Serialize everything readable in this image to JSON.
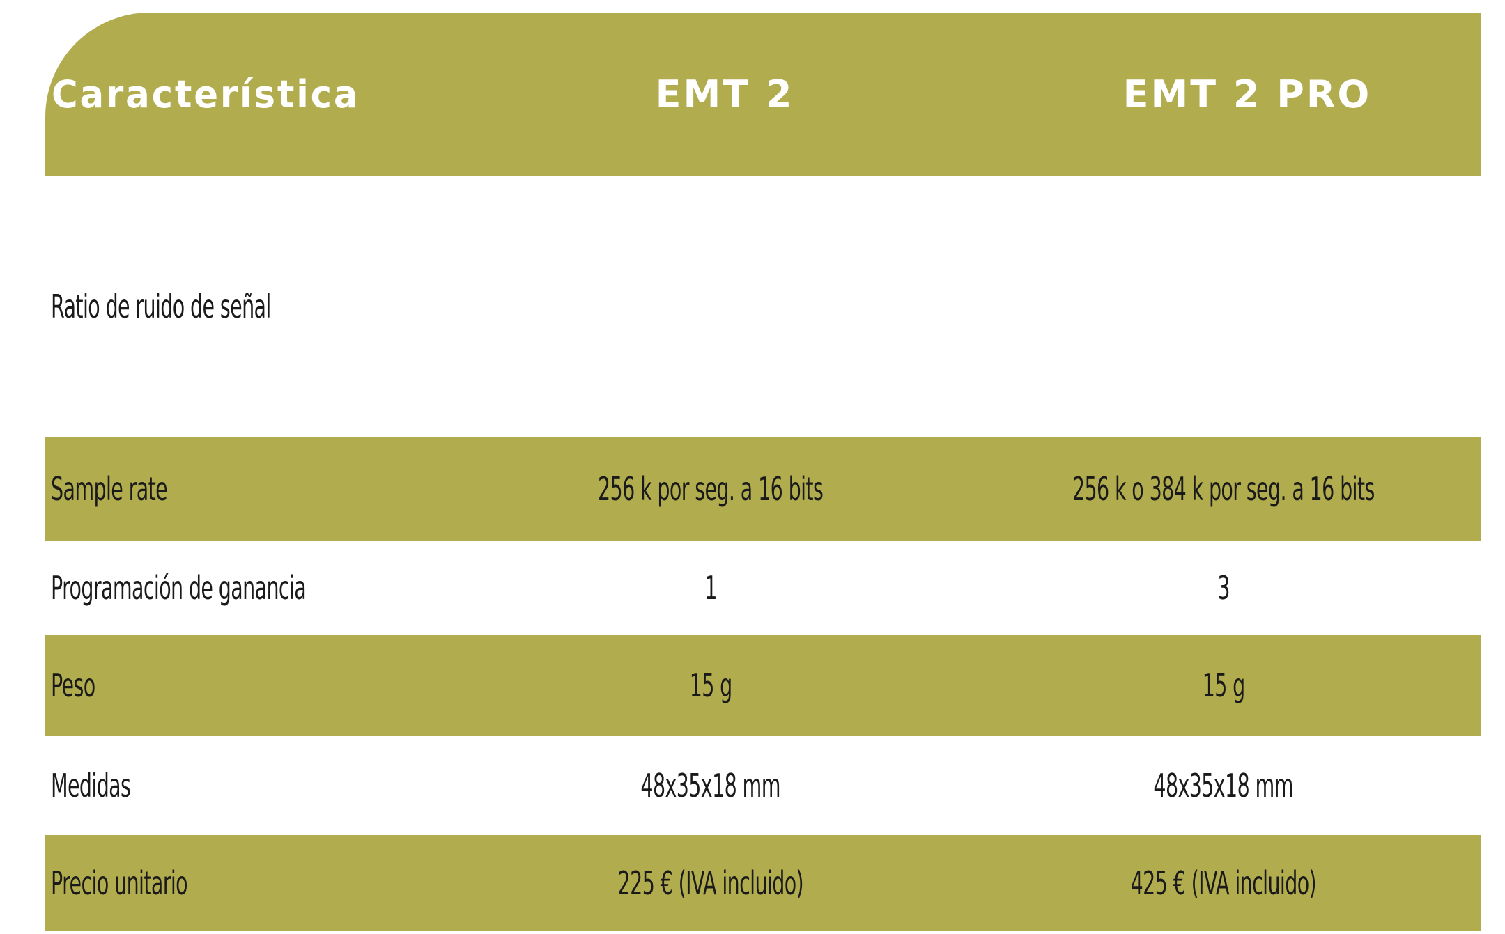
{
  "header": [
    "Característica",
    "EMT 2",
    "EMT 2 PRO"
  ],
  "rows": [
    {
      "label": "Ratio de ruido de señal"
    },
    {
      "label": "Sample rate",
      "values": [
        "256 k por seg. a 16 bits",
        "256 k o 384 k por seg. a 16 bits"
      ]
    },
    {
      "label": "Programación de ganancia",
      "values": [
        "1",
        "3"
      ]
    },
    {
      "label": "Peso",
      "values": [
        "15 g",
        "15 g"
      ]
    },
    {
      "label": "Medidas",
      "values": [
        "48x35x18 mm",
        "48x35x18 mm"
      ]
    },
    {
      "label": "Precio unitario",
      "values": [
        "225 € (IVA incluido)",
        "425 € (IVA incluido)"
      ]
    }
  ]
}
